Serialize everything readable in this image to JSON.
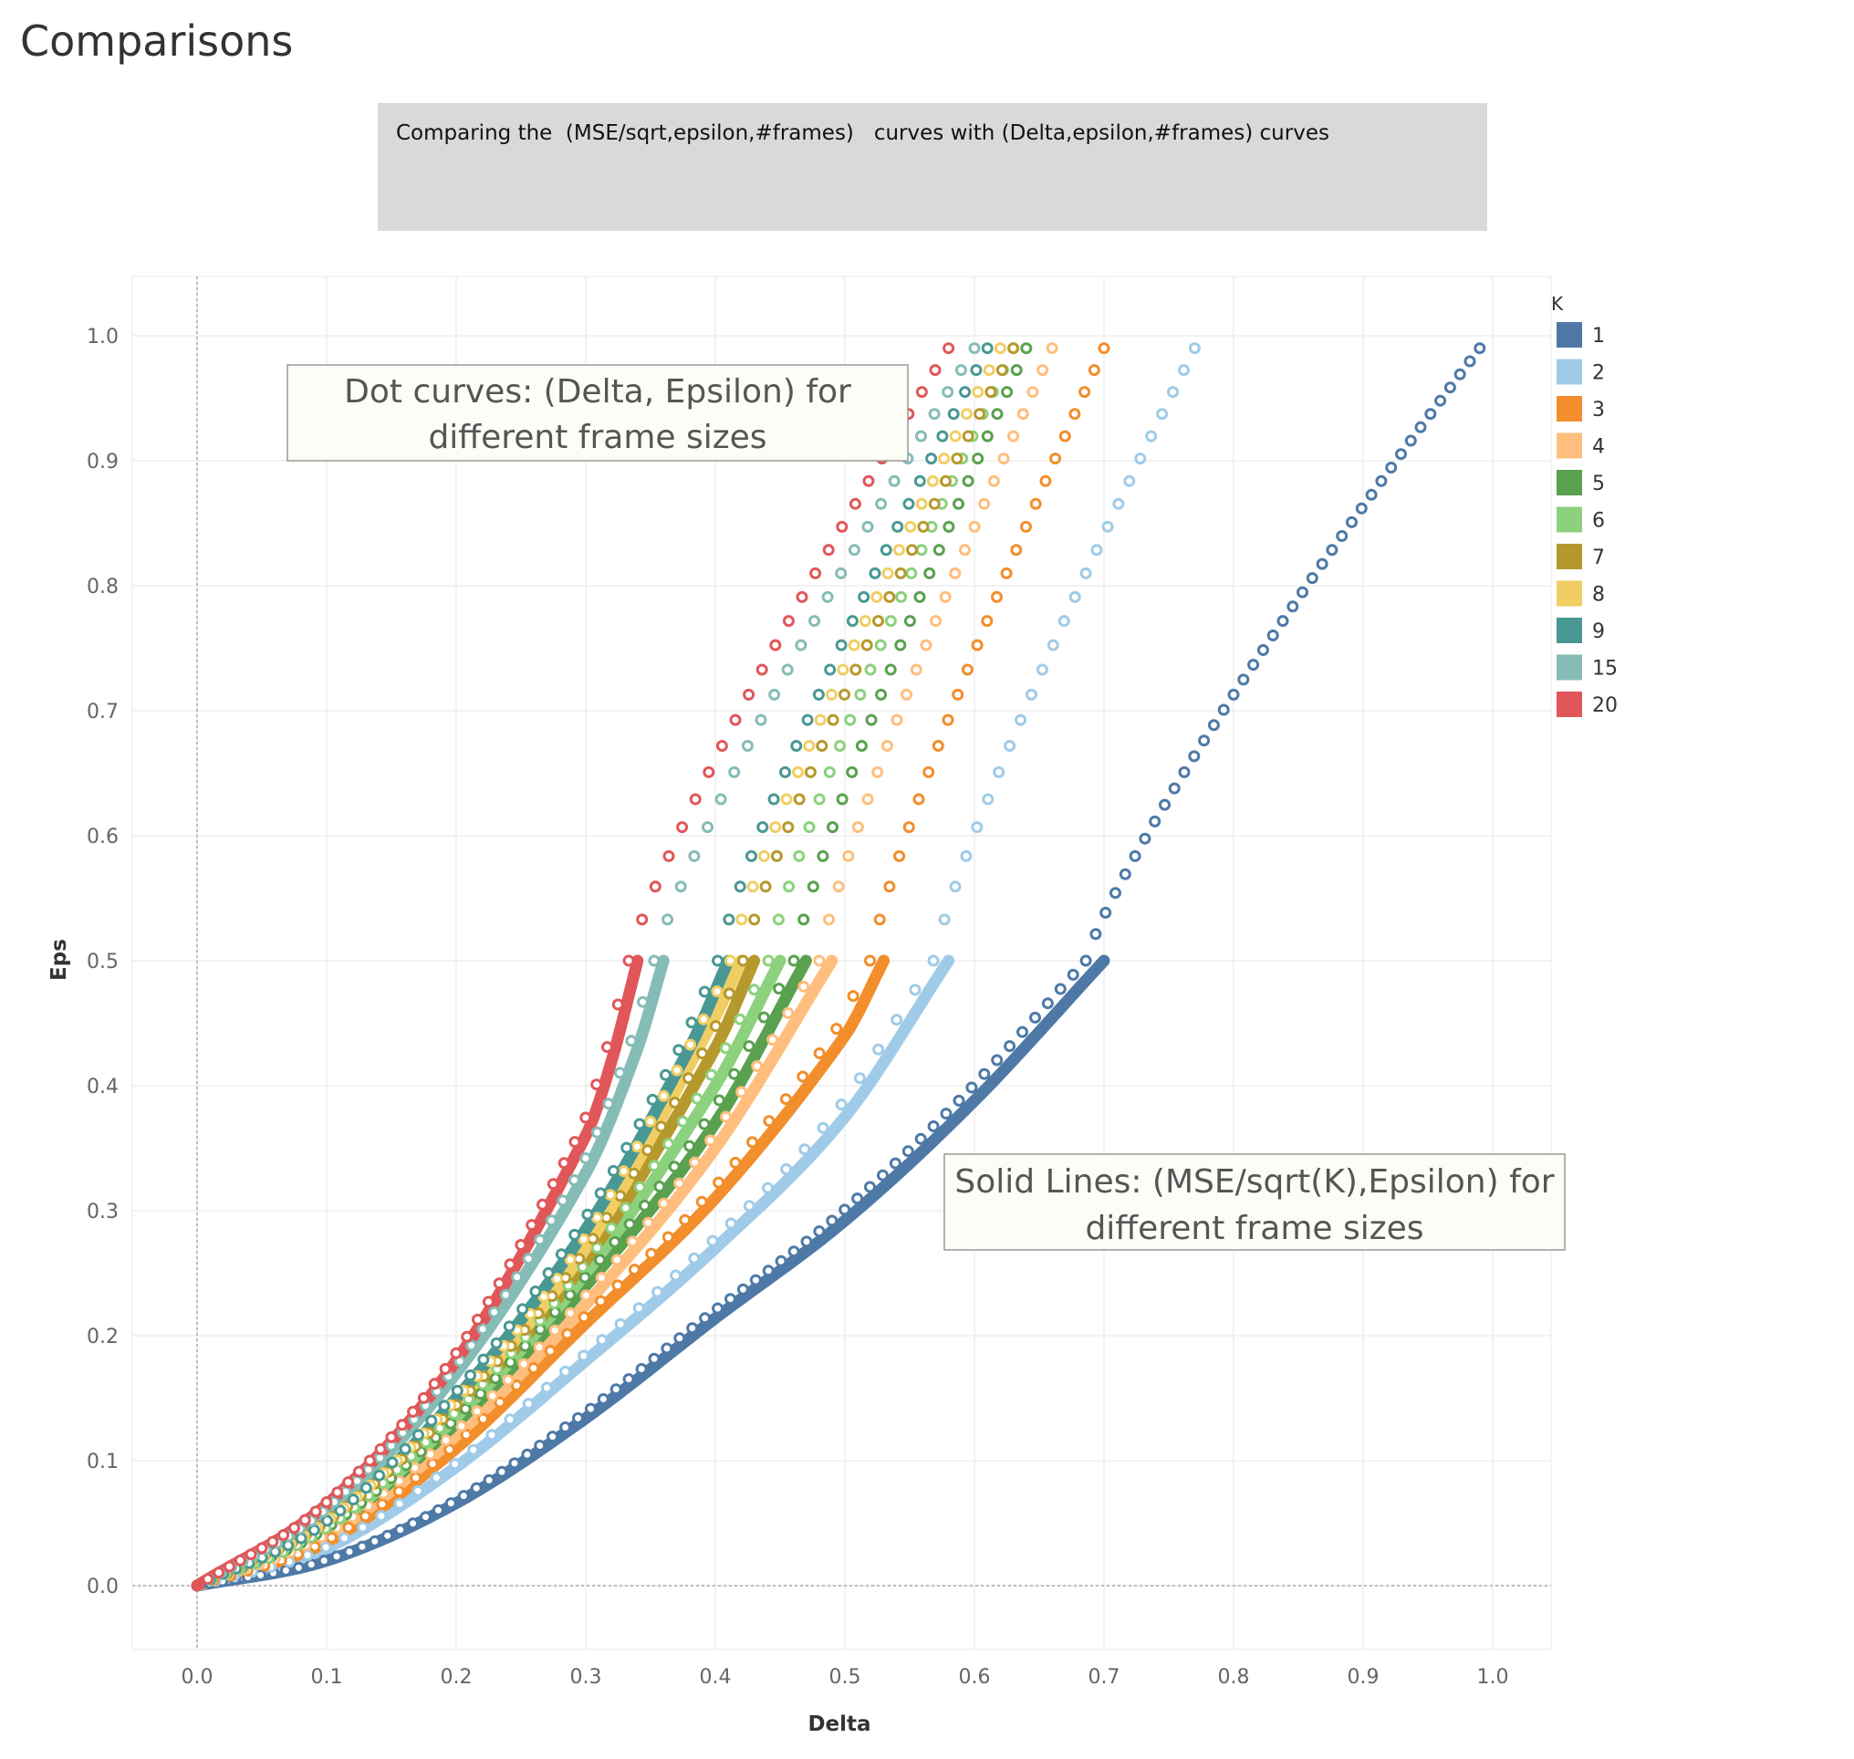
{
  "page": {
    "title": "Comparisons"
  },
  "caption": "Comparing the  (MSE/sqrt,epsilon,#frames)   curves with (Delta,epsilon,#frames) curves",
  "annotations": {
    "dots": {
      "line1": "Dot curves: (Delta, Epsilon) for",
      "line2": "different frame sizes"
    },
    "lines": {
      "line1": "Solid Lines: (MSE/sqrt(K),Epsilon) for",
      "line2": "different frame sizes"
    }
  },
  "chart_data": {
    "type": "scatter",
    "title": "",
    "xlabel": "Delta",
    "ylabel": "Eps",
    "xlim": [
      -0.05,
      1.05
    ],
    "ylim": [
      -0.05,
      1.05
    ],
    "x_ticks": [
      "0.0",
      "0.1",
      "0.2",
      "0.3",
      "0.4",
      "0.5",
      "0.6",
      "0.7",
      "0.8",
      "0.9",
      "1.0"
    ],
    "y_ticks": [
      "0.0",
      "0.1",
      "0.2",
      "0.3",
      "0.4",
      "0.5",
      "0.6",
      "0.7",
      "0.8",
      "0.9",
      "1.0"
    ],
    "grid": true,
    "legend": {
      "title": "K",
      "placement": "right"
    },
    "series": [
      {
        "name": "1",
        "color": "#4e79a7",
        "line_x": [
          0,
          0.1,
          0.2,
          0.3,
          0.4,
          0.5,
          0.6,
          0.7
        ],
        "line_y": [
          0,
          0.02,
          0.066,
          0.134,
          0.214,
          0.292,
          0.388,
          0.5
        ],
        "dot_max_delta": 0.99
      },
      {
        "name": "2",
        "color": "#a0cbe8",
        "line_x": [
          0,
          0.1,
          0.2,
          0.3,
          0.4,
          0.5,
          0.58
        ],
        "line_y": [
          0,
          0.03,
          0.095,
          0.18,
          0.27,
          0.375,
          0.5
        ],
        "dot_max_delta": 0.77
      },
      {
        "name": "3",
        "color": "#f28e2b",
        "line_x": [
          0,
          0.1,
          0.2,
          0.3,
          0.4,
          0.5,
          0.53
        ],
        "line_y": [
          0,
          0.035,
          0.11,
          0.21,
          0.31,
          0.44,
          0.5
        ],
        "dot_max_delta": 0.7
      },
      {
        "name": "4",
        "color": "#ffbe7d",
        "line_x": [
          0,
          0.1,
          0.2,
          0.3,
          0.4,
          0.49
        ],
        "line_y": [
          0,
          0.04,
          0.12,
          0.225,
          0.35,
          0.5
        ],
        "dot_max_delta": 0.66
      },
      {
        "name": "5",
        "color": "#59a14f",
        "line_x": [
          0,
          0.1,
          0.2,
          0.3,
          0.4,
          0.47
        ],
        "line_y": [
          0,
          0.045,
          0.13,
          0.24,
          0.37,
          0.5
        ],
        "dot_max_delta": 0.64
      },
      {
        "name": "6",
        "color": "#8cd17d",
        "line_x": [
          0,
          0.1,
          0.2,
          0.3,
          0.4,
          0.45
        ],
        "line_y": [
          0,
          0.045,
          0.135,
          0.25,
          0.4,
          0.5
        ],
        "dot_max_delta": 0.63
      },
      {
        "name": "7",
        "color": "#b6992d",
        "line_x": [
          0,
          0.1,
          0.2,
          0.3,
          0.4,
          0.43
        ],
        "line_y": [
          0,
          0.05,
          0.14,
          0.26,
          0.43,
          0.5
        ],
        "dot_max_delta": 0.63
      },
      {
        "name": "8",
        "color": "#f1ce63",
        "line_x": [
          0,
          0.1,
          0.2,
          0.3,
          0.4,
          0.42
        ],
        "line_y": [
          0,
          0.05,
          0.145,
          0.27,
          0.455,
          0.5
        ],
        "dot_max_delta": 0.62
      },
      {
        "name": "9",
        "color": "#499894",
        "line_x": [
          0,
          0.1,
          0.2,
          0.3,
          0.38,
          0.41
        ],
        "line_y": [
          0,
          0.05,
          0.15,
          0.285,
          0.43,
          0.5
        ],
        "dot_max_delta": 0.61
      },
      {
        "name": "15",
        "color": "#86bcb6",
        "line_x": [
          0,
          0.1,
          0.2,
          0.3,
          0.34,
          0.36
        ],
        "line_y": [
          0,
          0.06,
          0.17,
          0.33,
          0.43,
          0.5
        ],
        "dot_max_delta": 0.6
      },
      {
        "name": "20",
        "color": "#e15759",
        "line_x": [
          0,
          0.1,
          0.2,
          0.3,
          0.32,
          0.34
        ],
        "line_y": [
          0,
          0.065,
          0.18,
          0.36,
          0.42,
          0.5
        ],
        "dot_max_delta": 0.58
      }
    ]
  }
}
